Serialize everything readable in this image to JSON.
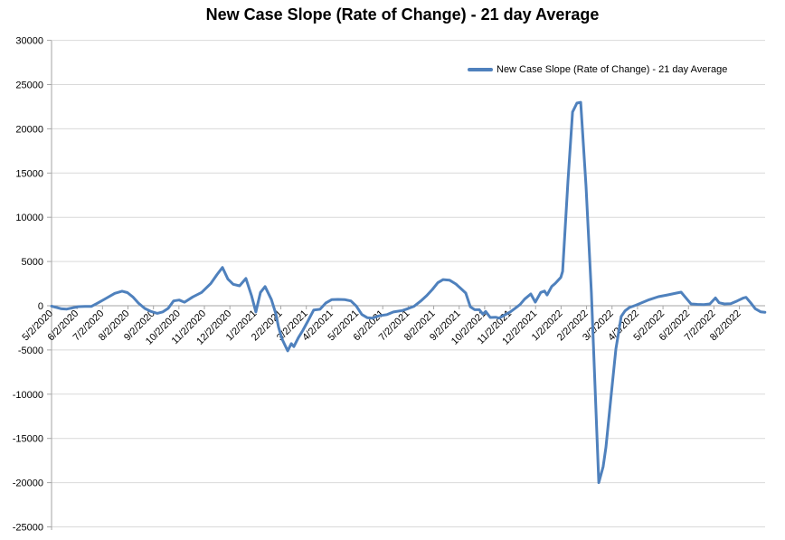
{
  "title": "New Case Slope (Rate of Change) - 21 day Average",
  "legend": {
    "label": "New Case Slope (Rate of Change) - 21 day Average",
    "swatch_color": "#4F81BD"
  },
  "colors": {
    "series_line": "#4F81BD",
    "gridline": "#D9D9D9",
    "axis_line": "#A6A6A6",
    "text": "#000000",
    "background": "#FFFFFF"
  },
  "chart_data": {
    "type": "line",
    "title": "New Case Slope (Rate of Change) - 21 day Average",
    "xlabel": "",
    "ylabel": "",
    "grid": true,
    "legend_position": "top-right",
    "x_axis": {
      "tick_labels": [
        "5/2/2020",
        "6/2/2020",
        "7/2/2020",
        "8/2/2020",
        "9/2/2020",
        "10/2/2020",
        "11/2/2020",
        "12/2/2020",
        "1/2/2021",
        "2/2/2021",
        "3/2/2021",
        "4/2/2021",
        "5/2/2021",
        "6/2/2021",
        "7/2/2021",
        "8/2/2021",
        "9/2/2021",
        "10/2/2021",
        "11/2/2021",
        "12/2/2021",
        "1/2/2022",
        "2/2/2022",
        "3/2/2022",
        "4/2/2022",
        "5/2/2022",
        "6/2/2022",
        "7/2/2022",
        "8/2/2022"
      ],
      "label_rotation_deg": -45,
      "x_unit": "months since 5/2/2020 (fractional category position)"
    },
    "y_axis": {
      "min": -25000,
      "max": 30000,
      "step": 5000,
      "tick_labels": [
        "30000",
        "25000",
        "20000",
        "15000",
        "10000",
        "5000",
        "0",
        "-5000",
        "-10000",
        "-15000",
        "-20000",
        "-25000"
      ]
    },
    "series": [
      {
        "name": "New Case Slope (Rate of Change) - 21 day Average",
        "color": "#4F81BD",
        "points": [
          [
            0,
            -50
          ],
          [
            0.21,
            -200
          ],
          [
            0.39,
            -350
          ],
          [
            0.6,
            -380
          ],
          [
            0.82,
            -250
          ],
          [
            1.06,
            -100
          ],
          [
            1.31,
            -80
          ],
          [
            1.56,
            -80
          ],
          [
            1.81,
            300
          ],
          [
            2.13,
            820
          ],
          [
            2.48,
            1400
          ],
          [
            2.77,
            1650
          ],
          [
            2.98,
            1480
          ],
          [
            3.19,
            990
          ],
          [
            3.41,
            300
          ],
          [
            3.66,
            -310
          ],
          [
            3.9,
            -640
          ],
          [
            4.15,
            -860
          ],
          [
            4.37,
            -700
          ],
          [
            4.58,
            -300
          ],
          [
            4.79,
            540
          ],
          [
            5.01,
            640
          ],
          [
            5.22,
            400
          ],
          [
            5.54,
            990
          ],
          [
            5.89,
            1500
          ],
          [
            6.25,
            2520
          ],
          [
            6.5,
            3540
          ],
          [
            6.71,
            4330
          ],
          [
            6.92,
            3030
          ],
          [
            7.13,
            2420
          ],
          [
            7.38,
            2250
          ],
          [
            7.63,
            3090
          ],
          [
            7.85,
            1150
          ],
          [
            8.02,
            -710
          ],
          [
            8.2,
            1500
          ],
          [
            8.38,
            2170
          ],
          [
            8.63,
            700
          ],
          [
            8.8,
            -880
          ],
          [
            8.91,
            -2420
          ],
          [
            9.05,
            -3770
          ],
          [
            9.27,
            -5100
          ],
          [
            9.41,
            -4280
          ],
          [
            9.51,
            -4620
          ],
          [
            9.69,
            -3600
          ],
          [
            9.87,
            -2760
          ],
          [
            10.05,
            -1800
          ],
          [
            10.29,
            -480
          ],
          [
            10.54,
            -400
          ],
          [
            10.76,
            300
          ],
          [
            11,
            700
          ],
          [
            11.25,
            720
          ],
          [
            11.5,
            700
          ],
          [
            11.75,
            540
          ],
          [
            11.96,
            -30
          ],
          [
            12.18,
            -990
          ],
          [
            12.39,
            -1350
          ],
          [
            12.6,
            -1400
          ],
          [
            12.85,
            -1150
          ],
          [
            13.17,
            -1000
          ],
          [
            13.42,
            -710
          ],
          [
            13.77,
            -540
          ],
          [
            14.02,
            -300
          ],
          [
            14.23,
            -60
          ],
          [
            14.48,
            500
          ],
          [
            14.73,
            1150
          ],
          [
            14.95,
            1840
          ],
          [
            15.16,
            2600
          ],
          [
            15.37,
            2960
          ],
          [
            15.62,
            2890
          ],
          [
            15.87,
            2450
          ],
          [
            16.12,
            1800
          ],
          [
            16.26,
            1430
          ],
          [
            16.44,
            -130
          ],
          [
            16.61,
            -450
          ],
          [
            16.79,
            -450
          ],
          [
            16.93,
            -950
          ],
          [
            17.04,
            -640
          ],
          [
            17.22,
            -1330
          ],
          [
            17.43,
            -1300
          ],
          [
            17.57,
            -1400
          ],
          [
            17.78,
            -1050
          ],
          [
            18,
            -710
          ],
          [
            18.21,
            -270
          ],
          [
            18.39,
            130
          ],
          [
            18.57,
            750
          ],
          [
            18.81,
            1330
          ],
          [
            18.99,
            410
          ],
          [
            19.2,
            1500
          ],
          [
            19.35,
            1660
          ],
          [
            19.45,
            1220
          ],
          [
            19.63,
            2170
          ],
          [
            19.77,
            2520
          ],
          [
            19.99,
            3200
          ],
          [
            20.06,
            3880
          ],
          [
            20.27,
            14080
          ],
          [
            20.45,
            21900
          ],
          [
            20.62,
            22900
          ],
          [
            20.77,
            23000
          ],
          [
            20.98,
            13500
          ],
          [
            21.19,
            1500
          ],
          [
            21.48,
            -20000
          ],
          [
            21.65,
            -18200
          ],
          [
            21.76,
            -16000
          ],
          [
            21.97,
            -10000
          ],
          [
            22.15,
            -4900
          ],
          [
            22.36,
            -1220
          ],
          [
            22.51,
            -580
          ],
          [
            22.68,
            -200
          ],
          [
            22.93,
            50
          ],
          [
            23.11,
            270
          ],
          [
            23.46,
            680
          ],
          [
            23.82,
            1020
          ],
          [
            24.17,
            1220
          ],
          [
            24.53,
            1430
          ],
          [
            24.71,
            1530
          ],
          [
            24.96,
            680
          ],
          [
            25.1,
            200
          ],
          [
            25.35,
            150
          ],
          [
            25.6,
            130
          ],
          [
            25.84,
            200
          ],
          [
            26.06,
            880
          ],
          [
            26.2,
            340
          ],
          [
            26.41,
            200
          ],
          [
            26.66,
            230
          ],
          [
            26.91,
            540
          ],
          [
            27.16,
            880
          ],
          [
            27.26,
            950
          ],
          [
            27.44,
            340
          ],
          [
            27.62,
            -340
          ],
          [
            27.83,
            -680
          ],
          [
            28,
            -740
          ]
        ]
      }
    ]
  }
}
